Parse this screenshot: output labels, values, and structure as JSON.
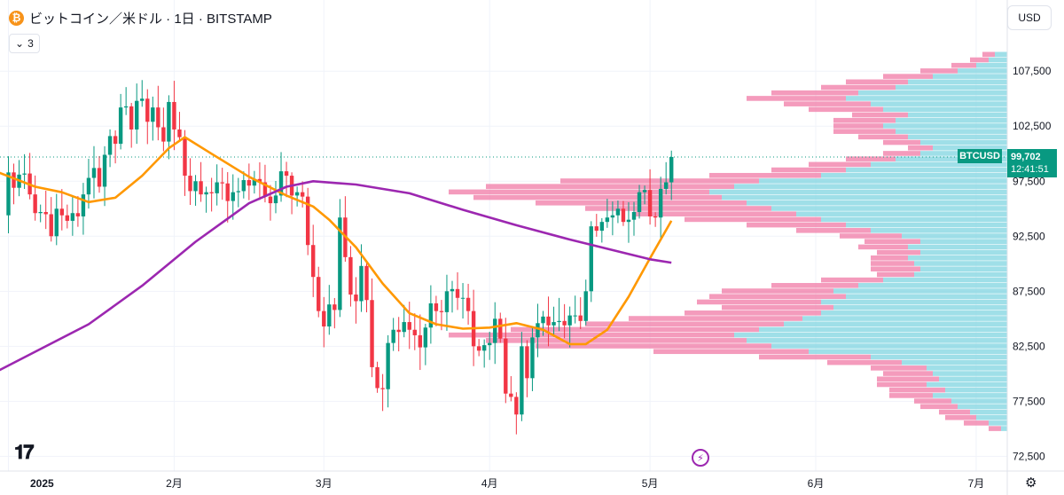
{
  "header": {
    "coin_icon": "₿",
    "title": "ビットコイン／米ドル · 1日 · BITSTAMP",
    "indicators_count": "3",
    "currency": "USD"
  },
  "icons": {
    "coin": "bitcoin-icon",
    "collapse": "chevron-down-icon",
    "logo": "tradingview-logo",
    "lightning": "lightning-icon",
    "settings": "gear-icon"
  },
  "price_label": {
    "symbol": "BTCUSD",
    "price": "99,702",
    "countdown": "12:41:51"
  },
  "chart_data": {
    "type": "candlestick",
    "symbol": "BTCUSD",
    "interval": "1D",
    "exchange": "BITSTAMP",
    "ylim": [
      72500,
      110000
    ],
    "y_ticks": [
      72500,
      77500,
      82500,
      87500,
      92500,
      97500,
      102500,
      107500
    ],
    "y_tick_labels": [
      "72,500",
      "77,500",
      "82,500",
      "87,500",
      "92,500",
      "97,500",
      "102,500",
      "107,500"
    ],
    "x_ticks": [
      {
        "label": "2025",
        "day": 0
      },
      {
        "label": "2月",
        "day": 31
      },
      {
        "label": "3月",
        "day": 59
      },
      {
        "label": "4月",
        "day": 90
      },
      {
        "label": "5月",
        "day": 120
      },
      {
        "label": "6月",
        "day": 151
      },
      {
        "label": "7月",
        "day": 181
      }
    ],
    "x_range_days": [
      -5,
      180
    ],
    "last_price": 99702,
    "closes": [
      98300,
      96900,
      98100,
      98200,
      96300,
      94600,
      94700,
      94500,
      92500,
      95000,
      94400,
      93900,
      94600,
      94300,
      96300,
      97800,
      98700,
      97000,
      99900,
      101600,
      100900,
      104200,
      104300,
      102200,
      104800,
      105000,
      102900,
      104200,
      102400,
      101100,
      104700,
      102200,
      101500,
      98000,
      96600,
      97500,
      96300,
      96500,
      96400,
      97400,
      97300,
      95700,
      96500,
      96600,
      97600,
      97100,
      97700,
      97400,
      96100,
      95500,
      96200,
      98400,
      98000,
      96200,
      96500,
      96100,
      91700,
      88800,
      85700,
      84300,
      86300,
      85800,
      94200,
      90600,
      87200,
      86600,
      89800,
      86700,
      80600,
      78700,
      78600,
      82800,
      84000,
      83800,
      84700,
      84000,
      83500,
      82400,
      84200,
      86400,
      85700,
      85600,
      87500,
      87700,
      86900,
      86900,
      85700,
      82500,
      82100,
      82600,
      82800,
      85000,
      83200,
      78200,
      77900,
      76300,
      82500,
      79600,
      83300,
      84600,
      85200,
      84400,
      84700,
      84800,
      84400,
      85300,
      85300,
      84800,
      87500,
      93400,
      93000,
      93800,
      94200,
      94400,
      95000,
      93800,
      94000,
      94700,
      96500,
      96700,
      94300,
      94200,
      96800,
      97400,
      99700
    ],
    "series": [
      {
        "name": "MA20",
        "color": "#ff9800",
        "points": [
          [
            -5,
            98900
          ],
          [
            5,
            97000
          ],
          [
            10,
            96500
          ],
          [
            15,
            95600
          ],
          [
            20,
            96000
          ],
          [
            25,
            98000
          ],
          [
            30,
            100500
          ],
          [
            33,
            101500
          ],
          [
            38,
            100000
          ],
          [
            45,
            97900
          ],
          [
            52,
            96200
          ],
          [
            57,
            95200
          ],
          [
            60,
            94000
          ],
          [
            65,
            91500
          ],
          [
            70,
            88200
          ],
          [
            75,
            85500
          ],
          [
            80,
            84500
          ],
          [
            85,
            84100
          ],
          [
            90,
            84200
          ],
          [
            95,
            84600
          ],
          [
            100,
            84000
          ],
          [
            105,
            82700
          ],
          [
            108,
            82700
          ],
          [
            112,
            84000
          ],
          [
            116,
            87000
          ],
          [
            120,
            90500
          ],
          [
            124,
            93900
          ]
        ]
      },
      {
        "name": "MA100",
        "color": "#9c27b0",
        "points": [
          [
            -5,
            79500
          ],
          [
            5,
            82000
          ],
          [
            15,
            84500
          ],
          [
            25,
            88000
          ],
          [
            35,
            92000
          ],
          [
            45,
            95500
          ],
          [
            52,
            97000
          ],
          [
            57,
            97500
          ],
          [
            65,
            97200
          ],
          [
            75,
            96400
          ],
          [
            85,
            94900
          ],
          [
            95,
            93500
          ],
          [
            105,
            92200
          ],
          [
            115,
            91000
          ],
          [
            120,
            90400
          ],
          [
            124,
            90100
          ]
        ]
      }
    ],
    "up_color": "#089981",
    "down_color": "#f23645",
    "volume_profile": {
      "up_color": "#7fd4e0",
      "down_color": "#f07aa6",
      "bins": [
        [
          75000,
          1,
          2
        ],
        [
          75500,
          3,
          4
        ],
        [
          76000,
          5,
          5
        ],
        [
          76500,
          6,
          5
        ],
        [
          77000,
          8,
          6
        ],
        [
          77500,
          9,
          6
        ],
        [
          78000,
          12,
          7
        ],
        [
          78500,
          10,
          9
        ],
        [
          79000,
          13,
          8
        ],
        [
          79500,
          11,
          10
        ],
        [
          80000,
          12,
          8
        ],
        [
          80500,
          13,
          9
        ],
        [
          81000,
          17,
          12
        ],
        [
          81500,
          22,
          18
        ],
        [
          82000,
          32,
          25
        ],
        [
          82500,
          38,
          38
        ],
        [
          83000,
          42,
          42
        ],
        [
          83500,
          44,
          46
        ],
        [
          84000,
          40,
          40
        ],
        [
          84500,
          36,
          32
        ],
        [
          85000,
          33,
          28
        ],
        [
          85500,
          30,
          22
        ],
        [
          86000,
          28,
          18
        ],
        [
          86500,
          30,
          20
        ],
        [
          87000,
          26,
          22
        ],
        [
          87500,
          28,
          18
        ],
        [
          88000,
          24,
          14
        ],
        [
          88500,
          20,
          10
        ],
        [
          89000,
          15,
          6
        ],
        [
          89500,
          14,
          8
        ],
        [
          90000,
          15,
          7
        ],
        [
          90500,
          16,
          6
        ],
        [
          91000,
          14,
          7
        ],
        [
          91500,
          16,
          8
        ],
        [
          92000,
          14,
          9
        ],
        [
          92500,
          17,
          10
        ],
        [
          93000,
          22,
          12
        ],
        [
          93500,
          26,
          16
        ],
        [
          94000,
          30,
          22
        ],
        [
          94500,
          34,
          26
        ],
        [
          95000,
          38,
          30
        ],
        [
          95500,
          42,
          34
        ],
        [
          96000,
          46,
          40
        ],
        [
          96500,
          48,
          42
        ],
        [
          97000,
          44,
          40
        ],
        [
          97500,
          40,
          32
        ],
        [
          98000,
          30,
          18
        ],
        [
          98500,
          26,
          12
        ],
        [
          99000,
          22,
          10
        ],
        [
          99500,
          18,
          8
        ],
        [
          100000,
          14,
          6
        ],
        [
          100500,
          12,
          4
        ],
        [
          101000,
          14,
          6
        ],
        [
          101500,
          16,
          8
        ],
        [
          102000,
          18,
          10
        ],
        [
          102500,
          20,
          8
        ],
        [
          103000,
          18,
          10
        ],
        [
          103500,
          16,
          9
        ],
        [
          104000,
          20,
          12
        ],
        [
          104500,
          22,
          14
        ],
        [
          105000,
          26,
          16
        ],
        [
          105500,
          24,
          14
        ],
        [
          106000,
          18,
          12
        ],
        [
          106500,
          16,
          10
        ],
        [
          107000,
          12,
          8
        ],
        [
          107500,
          8,
          6
        ],
        [
          108000,
          5,
          4
        ],
        [
          108500,
          3,
          3
        ],
        [
          109000,
          2,
          2
        ]
      ]
    }
  }
}
